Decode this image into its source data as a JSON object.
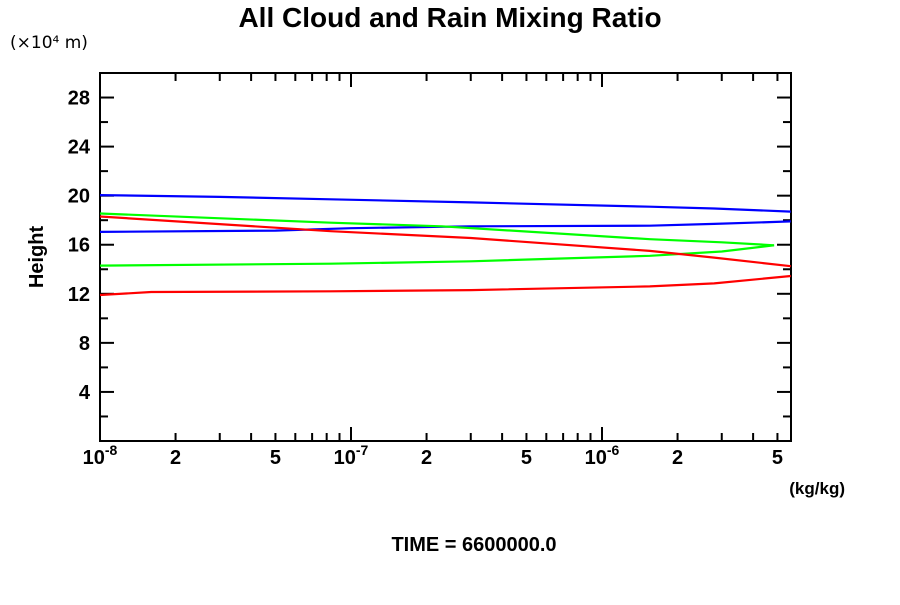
{
  "chart_data": {
    "type": "line",
    "title": "All Cloud and Rain Mixing Ratio",
    "xlabel": "(kg/kg)",
    "ylabel": "Height",
    "y_unit_label": "(×10⁴  m)",
    "annotation": "TIME = 6600000.0",
    "x_scale": "log",
    "xlim": [
      1e-08,
      5.7e-06
    ],
    "ylim": [
      0,
      30
    ],
    "grid": false,
    "legend": "none",
    "axis_color": "#000000",
    "y_major_ticks": [
      4,
      8,
      12,
      16,
      20,
      24,
      28
    ],
    "y_minor_ticks": [
      2,
      6,
      10,
      14,
      18,
      22,
      26
    ],
    "x_ticks": [
      {
        "v": 1e-08,
        "major": true,
        "t": "10",
        "sup": "-8"
      },
      {
        "v": 2e-08,
        "t": "2"
      },
      {
        "v": 3e-08
      },
      {
        "v": 4e-08
      },
      {
        "v": 5e-08,
        "t": "5"
      },
      {
        "v": 6e-08
      },
      {
        "v": 7e-08
      },
      {
        "v": 8e-08
      },
      {
        "v": 9e-08
      },
      {
        "v": 1e-07,
        "major": true,
        "t": "10",
        "sup": "-7"
      },
      {
        "v": 2e-07,
        "t": "2"
      },
      {
        "v": 3e-07
      },
      {
        "v": 4e-07
      },
      {
        "v": 5e-07,
        "t": "5"
      },
      {
        "v": 6e-07
      },
      {
        "v": 7e-07
      },
      {
        "v": 8e-07
      },
      {
        "v": 9e-07
      },
      {
        "v": 1e-06,
        "major": true,
        "t": "10",
        "sup": "-6"
      },
      {
        "v": 2e-06,
        "t": "2"
      },
      {
        "v": 3e-06
      },
      {
        "v": 4e-06
      },
      {
        "v": 5e-06,
        "t": "5"
      }
    ],
    "series": [
      {
        "name": "blue-upper",
        "color": "#0000ff",
        "points": [
          [
            1e-08,
            20.05
          ],
          [
            3e-08,
            19.9
          ],
          [
            8.3e-08,
            19.7
          ],
          [
            3e-07,
            19.45
          ],
          [
            1.55e-06,
            19.1
          ],
          [
            2.8e-06,
            18.95
          ],
          [
            5.65e-06,
            18.7
          ]
        ]
      },
      {
        "name": "blue-lower",
        "color": "#0000ff",
        "points": [
          [
            1e-08,
            17.05
          ],
          [
            5e-08,
            17.15
          ],
          [
            1e-07,
            17.35
          ],
          [
            3e-07,
            17.5
          ],
          [
            1.55e-06,
            17.55
          ],
          [
            2.8e-06,
            17.7
          ],
          [
            5.65e-06,
            17.9
          ]
        ]
      },
      {
        "name": "green-upper",
        "color": "#00ff00",
        "points": [
          [
            1e-08,
            18.55
          ],
          [
            8.3e-08,
            17.8
          ],
          [
            2.3e-07,
            17.5
          ],
          [
            1.55e-06,
            16.45
          ],
          [
            3e-06,
            16.2
          ],
          [
            4.85e-06,
            15.95
          ]
        ]
      },
      {
        "name": "green-lower",
        "color": "#00ff00",
        "points": [
          [
            1e-08,
            14.3
          ],
          [
            8.3e-08,
            14.45
          ],
          [
            3e-07,
            14.65
          ],
          [
            1.55e-06,
            15.1
          ],
          [
            3e-06,
            15.45
          ],
          [
            4.85e-06,
            15.95
          ]
        ]
      },
      {
        "name": "red-upper",
        "color": "#ff0000",
        "points": [
          [
            1e-08,
            18.3
          ],
          [
            8.3e-08,
            17.1
          ],
          [
            3e-07,
            16.55
          ],
          [
            1.55e-06,
            15.5
          ],
          [
            2.8e-06,
            14.95
          ],
          [
            5.65e-06,
            14.25
          ]
        ]
      },
      {
        "name": "red-lower",
        "color": "#ff0000",
        "points": [
          [
            1e-08,
            11.9
          ],
          [
            1.6e-08,
            12.15
          ],
          [
            8.3e-08,
            12.2
          ],
          [
            3e-07,
            12.3
          ],
          [
            1.55e-06,
            12.6
          ],
          [
            2.8e-06,
            12.85
          ],
          [
            5.65e-06,
            13.45
          ]
        ]
      }
    ]
  }
}
